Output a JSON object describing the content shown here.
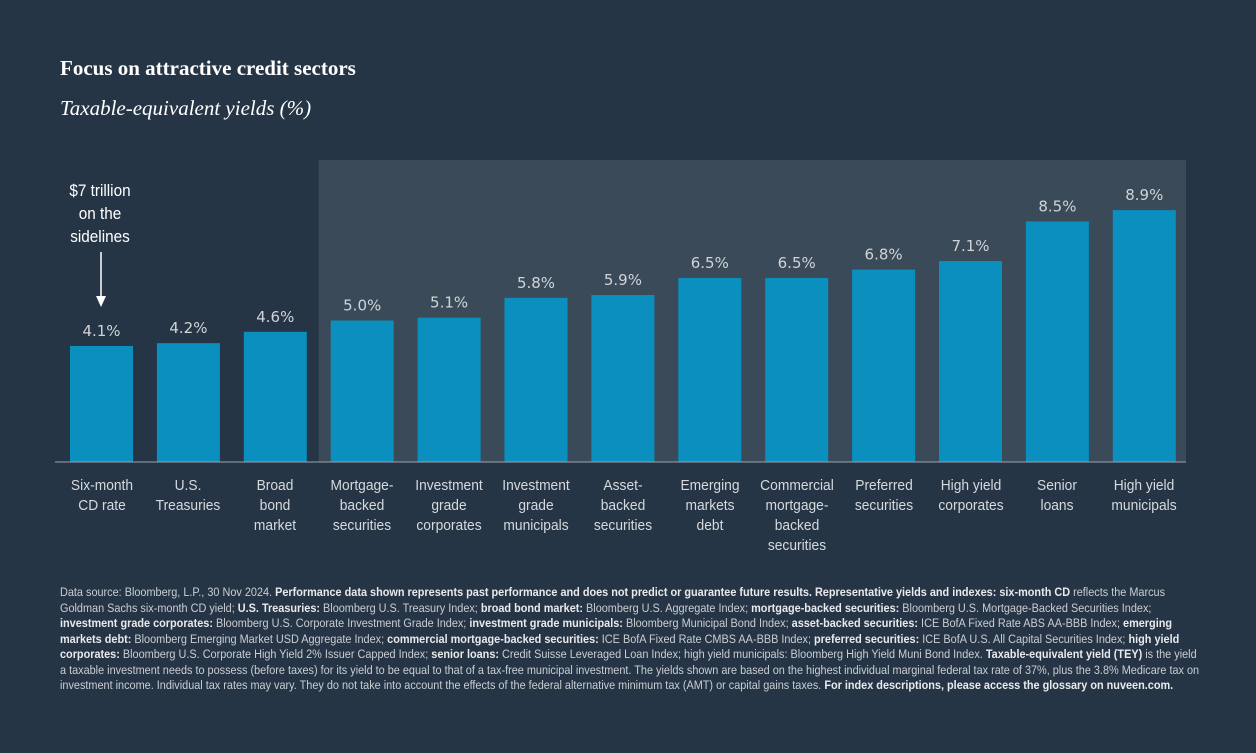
{
  "title": "Focus on attractive credit sectors",
  "subtitle": "Taxable-equivalent yields (%)",
  "colors": {
    "background": "#263545",
    "highlight_panel": "#3a4a59",
    "bar": "#0a8fbf",
    "label": "#d0d4d8"
  },
  "annotation": {
    "lines": [
      "$7 trillion",
      "on the",
      "sidelines"
    ],
    "icon": "arrow-down-icon"
  },
  "chart_data": {
    "type": "bar",
    "title": "Focus on attractive credit sectors",
    "subtitle": "Taxable-equivalent yields (%)",
    "xlabel": "",
    "ylabel": "",
    "ylim": [
      0,
      10
    ],
    "grid": false,
    "highlighted_range": [
      "Mortgage-backed securities",
      "High yield municipals"
    ],
    "categories": [
      [
        "Six-month",
        "CD rate"
      ],
      [
        "U.S.",
        "Treasuries"
      ],
      [
        "Broad",
        "bond",
        "market"
      ],
      [
        "Mortgage-",
        "backed",
        "securities"
      ],
      [
        "Investment",
        "grade",
        "corporates"
      ],
      [
        "Investment",
        "grade",
        "municipals"
      ],
      [
        "Asset-",
        "backed",
        "securities"
      ],
      [
        "Emerging",
        "markets",
        "debt"
      ],
      [
        "Commercial",
        "mortgage-",
        "backed",
        "securities"
      ],
      [
        "Preferred",
        "securities"
      ],
      [
        "High yield",
        "corporates"
      ],
      [
        "Senior",
        "loans"
      ],
      [
        "High yield",
        "municipals"
      ]
    ],
    "values": [
      4.1,
      4.2,
      4.6,
      5.0,
      5.1,
      5.8,
      5.9,
      6.5,
      6.5,
      6.8,
      7.1,
      8.5,
      8.9
    ],
    "data_labels": [
      "4.1%",
      "4.2%",
      "4.6%",
      "5.0%",
      "5.1%",
      "5.8%",
      "5.9%",
      "6.5%",
      "6.5%",
      "6.8%",
      "7.1%",
      "8.5%",
      "8.9%"
    ]
  },
  "footnote": [
    {
      "t": "Data source: Bloomberg, L.P., 30 Nov 2024. ",
      "b": false
    },
    {
      "t": "Performance data shown represents past performance and does not predict or guarantee future results. Representative yields and indexes: six-month CD",
      "b": true
    },
    {
      "t": " reflects the Marcus Goldman Sachs six-month CD yield; ",
      "b": false
    },
    {
      "t": "U.S. Treasuries:",
      "b": true
    },
    {
      "t": " Bloomberg U.S. Treasury Index; ",
      "b": false
    },
    {
      "t": "broad bond market:",
      "b": true
    },
    {
      "t": " Bloomberg U.S. Aggregate Index; ",
      "b": false
    },
    {
      "t": "mortgage-backed securities:",
      "b": true
    },
    {
      "t": " Bloomberg U.S. Mortgage-Backed Securities Index; ",
      "b": false
    },
    {
      "t": "investment grade corporates:",
      "b": true
    },
    {
      "t": " Bloomberg U.S. Corporate Investment Grade Index; ",
      "b": false
    },
    {
      "t": "investment grade municipals:",
      "b": true
    },
    {
      "t": " Bloomberg Municipal Bond Index; ",
      "b": false
    },
    {
      "t": "asset-backed securities:",
      "b": true
    },
    {
      "t": " ICE BofA Fixed Rate ABS AA-BBB Index; ",
      "b": false
    },
    {
      "t": "emerging markets debt:",
      "b": true
    },
    {
      "t": " Bloomberg Emerging Market USD Aggregate Index; ",
      "b": false
    },
    {
      "t": "commercial mortgage-backed securities:",
      "b": true
    },
    {
      "t": " ICE BofA Fixed Rate CMBS AA-BBB Index; ",
      "b": false
    },
    {
      "t": "preferred securities:",
      "b": true
    },
    {
      "t": " ICE BofA U.S. All Capital Securities Index; ",
      "b": false
    },
    {
      "t": "high yield corporates:",
      "b": true
    },
    {
      "t": " Bloomberg U.S. Corporate High Yield 2% Issuer Capped Index; ",
      "b": false
    },
    {
      "t": "senior loans:",
      "b": true
    },
    {
      "t": " Credit Suisse Leveraged Loan Index; high yield municipals: Bloomberg High Yield Muni Bond Index. ",
      "b": false
    },
    {
      "t": "Taxable-equivalent yield (TEY)",
      "b": true
    },
    {
      "t": " is the yield a taxable investment needs to possess (before taxes) for its yield to be equal to that of a tax-free municipal investment. The yields shown are based on the highest individual marginal federal tax rate of 37%, plus the 3.8% Medicare tax on investment income. Individual tax rates may vary. They do not take into account the effects of the federal alternative minimum tax (AMT) or capital gains taxes. ",
      "b": false
    },
    {
      "t": "For index descriptions, please access the glossary on nuveen.com.",
      "b": true
    }
  ]
}
